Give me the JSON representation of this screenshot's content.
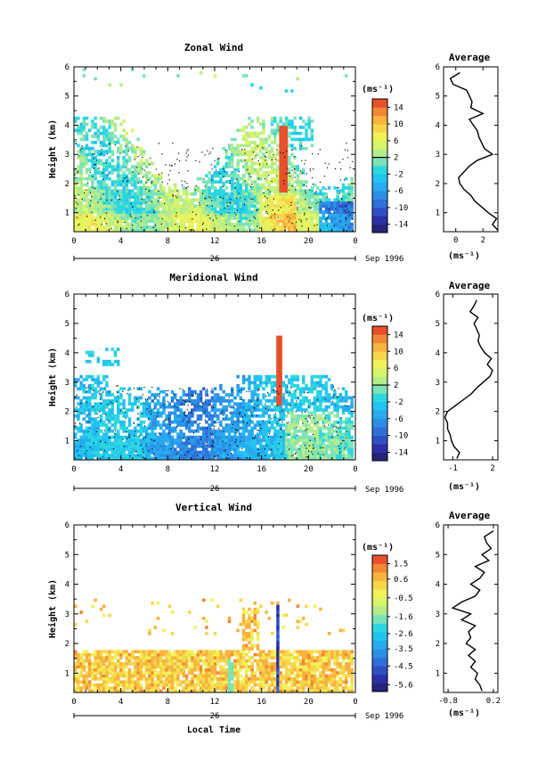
{
  "chart_data": [
    {
      "type": "heatmap",
      "title": "Zonal Wind",
      "ylabel": "Height (km)",
      "xlabel": "",
      "xticks": [
        "0",
        "4",
        "8",
        "12",
        "16",
        "20",
        "0"
      ],
      "yticks": [
        "1",
        "2",
        "3",
        "4",
        "5",
        "6"
      ],
      "xlim": [
        0,
        24
      ],
      "ylim": [
        0.35,
        6
      ],
      "date_label": "26",
      "date_suffix": "Sep 1996",
      "colorbar": {
        "unit": "(ms⁻¹)",
        "labels": [
          "14",
          "10",
          "6",
          "2",
          "-2",
          "-6",
          "-10",
          "-14"
        ],
        "min": -16,
        "max": 16,
        "zero_line": 2
      },
      "average": {
        "title": "Average",
        "xlabel": "(ms⁻¹)",
        "xticks": [
          "0",
          "2"
        ],
        "xtick_values": [
          0,
          2
        ],
        "xlim": [
          -0.9,
          3.1
        ],
        "yticks": [
          "1",
          "2",
          "3",
          "4",
          "5",
          "6"
        ],
        "height": [
          0.4,
          0.6,
          0.8,
          1.0,
          1.2,
          1.4,
          1.6,
          1.8,
          2.0,
          2.2,
          2.4,
          2.6,
          2.8,
          3.0,
          3.2,
          3.4,
          3.6,
          3.8,
          4.0,
          4.2,
          4.4,
          4.6,
          4.8,
          5.0,
          5.2,
          5.4,
          5.6,
          5.8
        ],
        "values": [
          3.1,
          2.7,
          3.0,
          2.4,
          1.9,
          1.4,
          1.1,
          0.6,
          0.3,
          0.2,
          0.6,
          1.0,
          1.6,
          2.7,
          2.1,
          1.9,
          1.7,
          1.6,
          1.3,
          1.0,
          2.0,
          1.1,
          1.2,
          1.0,
          0.8,
          -0.2,
          -0.4,
          0.3
        ]
      },
      "color_scale": {
        "levels": [
          -16,
          -14,
          -12,
          -10,
          -8,
          -6,
          -4,
          -2,
          0,
          2,
          4,
          6,
          8,
          10,
          12,
          14,
          16
        ],
        "colors": [
          "#26247a",
          "#2c2fa6",
          "#2f4fc7",
          "#2f6fd9",
          "#2c8fe6",
          "#27aaf0",
          "#22c3f0",
          "#2dd7e0",
          "#7be3b8",
          "#b4ec8c",
          "#d8f46a",
          "#f0f25a",
          "#f7d64a",
          "#f8b23e",
          "#f38634",
          "#e8502c"
        ]
      }
    },
    {
      "type": "heatmap",
      "title": "Meridional Wind",
      "ylabel": "Height (km)",
      "xlabel": "",
      "xticks": [
        "0",
        "4",
        "8",
        "12",
        "16",
        "20",
        "0"
      ],
      "yticks": [
        "1",
        "2",
        "3",
        "4",
        "5",
        "6"
      ],
      "xlim": [
        0,
        24
      ],
      "ylim": [
        0.35,
        6
      ],
      "date_label": "26",
      "date_suffix": "Sep 1996",
      "colorbar": {
        "unit": "(ms⁻¹)",
        "labels": [
          "14",
          "10",
          "6",
          "2",
          "-2",
          "-6",
          "-10",
          "-14"
        ],
        "min": -16,
        "max": 16,
        "zero_line": 2
      },
      "average": {
        "title": "Average",
        "xlabel": "(ms⁻¹)",
        "xticks": [
          "-1",
          "2"
        ],
        "xtick_values": [
          -1,
          2
        ],
        "xlim": [
          -1.7,
          2.4
        ],
        "yticks": [
          "1",
          "2",
          "3",
          "4",
          "5",
          "6"
        ],
        "height": [
          0.4,
          0.6,
          0.8,
          1.0,
          1.2,
          1.4,
          1.6,
          1.8,
          2.0,
          2.2,
          2.4,
          2.6,
          2.8,
          3.0,
          3.2,
          3.4,
          3.6,
          3.8,
          4.0,
          4.2,
          4.4,
          4.6,
          4.8,
          5.0,
          5.2,
          5.4,
          5.6,
          5.8
        ],
        "values": [
          -0.7,
          -0.5,
          -0.9,
          -1.1,
          -1.2,
          -1.4,
          -1.4,
          -1.6,
          -1.4,
          -0.8,
          -0.2,
          0.4,
          0.8,
          1.3,
          1.8,
          2.0,
          1.6,
          1.9,
          1.4,
          1.1,
          0.9,
          1.0,
          0.8,
          0.6,
          0.9,
          0.3,
          0.6,
          0.8
        ]
      },
      "color_scale": {
        "levels": [
          -16,
          -14,
          -12,
          -10,
          -8,
          -6,
          -4,
          -2,
          0,
          2,
          4,
          6,
          8,
          10,
          12,
          14,
          16
        ],
        "colors": [
          "#26247a",
          "#2c2fa6",
          "#2f4fc7",
          "#2f6fd9",
          "#2c8fe6",
          "#27aaf0",
          "#22c3f0",
          "#2dd7e0",
          "#7be3b8",
          "#b4ec8c",
          "#d8f46a",
          "#f0f25a",
          "#f7d64a",
          "#f8b23e",
          "#f38634",
          "#e8502c"
        ]
      }
    },
    {
      "type": "heatmap",
      "title": "Vertical Wind",
      "ylabel": "Height (km)",
      "xlabel": "Local Time",
      "xticks": [
        "0",
        "4",
        "8",
        "12",
        "16",
        "20",
        "0"
      ],
      "yticks": [
        "1",
        "2",
        "3",
        "4",
        "5",
        "6"
      ],
      "xlim": [
        0,
        24
      ],
      "ylim": [
        0.35,
        6
      ],
      "date_label": "26",
      "date_suffix": "Sep 1996",
      "colorbar": {
        "unit": "(ms⁻¹)",
        "labels": [
          "1.5",
          "0.6",
          "-0.5",
          "-1.6",
          "-2.6",
          "-3.5",
          "-4.5",
          "-5.6"
        ],
        "min": -6.0,
        "max": 2.0,
        "zero_line": null
      },
      "average": {
        "title": "Average",
        "xlabel": "(ms⁻¹)",
        "xticks": [
          "-0.8",
          "0.2"
        ],
        "xtick_values": [
          -0.8,
          0.2
        ],
        "xlim": [
          -0.9,
          0.3
        ],
        "yticks": [
          "1",
          "2",
          "3",
          "4",
          "5",
          "6"
        ],
        "height": [
          0.4,
          0.6,
          0.8,
          1.0,
          1.2,
          1.4,
          1.6,
          1.8,
          2.0,
          2.2,
          2.4,
          2.6,
          2.8,
          3.0,
          3.2,
          3.4,
          3.6,
          3.8,
          4.0,
          4.2,
          4.4,
          4.6,
          4.8,
          5.0,
          5.2,
          5.4,
          5.6,
          5.8
        ],
        "values": [
          -0.05,
          -0.1,
          -0.2,
          -0.15,
          -0.3,
          -0.2,
          -0.35,
          -0.2,
          -0.4,
          -0.3,
          -0.35,
          -0.2,
          -0.5,
          -0.3,
          -0.7,
          -0.5,
          -0.2,
          -0.1,
          -0.3,
          -0.1,
          0.0,
          -0.2,
          0.1,
          -0.05,
          0.15,
          0.05,
          0.0,
          0.2
        ]
      },
      "color_scale": {
        "levels": [
          -6.0,
          -5.5,
          -5.0,
          -4.5,
          -4.0,
          -3.5,
          -3.0,
          -2.5,
          -2.0,
          -1.5,
          -1.0,
          -0.5,
          0.0,
          0.5,
          1.0,
          1.5,
          2.0
        ],
        "colors": [
          "#26247a",
          "#2c2fa6",
          "#2f4fc7",
          "#2f6fd9",
          "#2c8fe6",
          "#27aaf0",
          "#22c3f0",
          "#2dd7e0",
          "#7be3b8",
          "#b4ec8c",
          "#d8f46a",
          "#f0f25a",
          "#f7d64a",
          "#f8b23e",
          "#f38634",
          "#e8502c"
        ]
      }
    }
  ]
}
